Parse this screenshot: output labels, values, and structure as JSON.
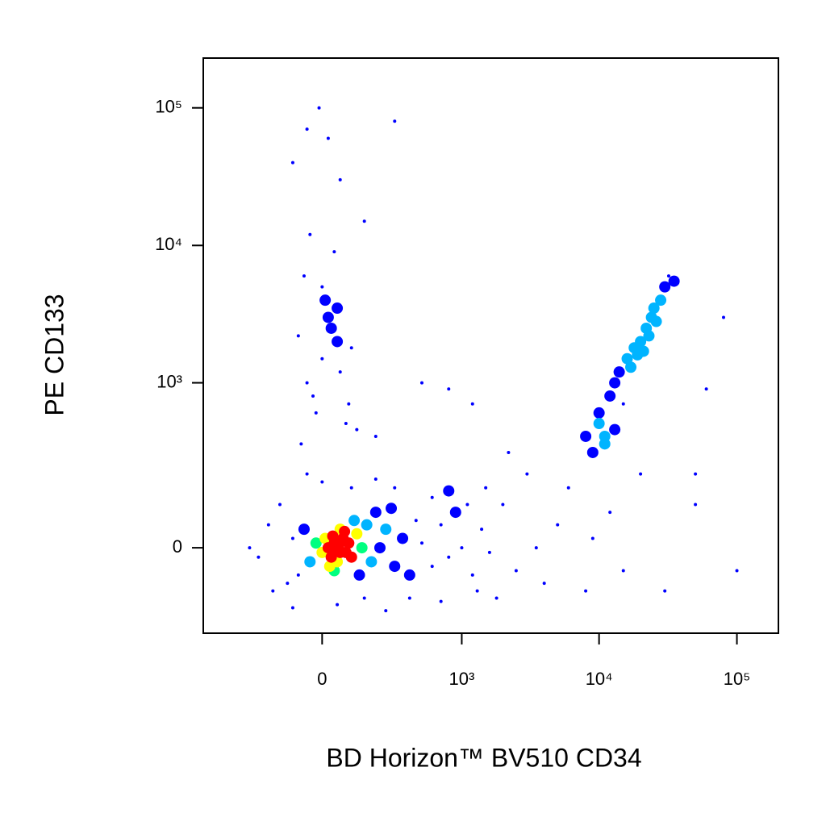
{
  "chart_data": {
    "type": "scatter",
    "x_label": "BD Horizon™ BV510 CD34",
    "y_label": "PE CD133",
    "xlim": [
      -700,
      200000
    ],
    "ylim": [
      -250,
      230000
    ],
    "xticks": [
      0,
      {
        "value": 1000,
        "label": "10³"
      },
      {
        "value": 10000,
        "label": "10⁴"
      },
      {
        "value": 100000,
        "label": "10⁵"
      }
    ],
    "yticks": [
      0,
      {
        "value": 1000,
        "label": "10³"
      },
      {
        "value": 10000,
        "label": "10⁴"
      },
      {
        "value": 100000,
        "label": "10⁵"
      }
    ],
    "colormap": [
      "#0000ff",
      "#00b4ff",
      "#00ff80",
      "#ffff00",
      "#ff0000"
    ],
    "x": [
      50,
      40,
      60,
      30,
      70,
      55,
      45,
      65,
      20,
      80,
      35,
      50,
      75,
      25,
      90,
      10,
      60,
      40,
      100,
      0,
      120,
      -20,
      110,
      -40,
      140,
      130,
      -60,
      160,
      -80,
      180,
      200,
      -100,
      220,
      -120,
      250,
      300,
      280,
      350,
      400,
      450,
      500,
      600,
      700,
      800,
      900,
      1000,
      1200,
      1400,
      1600,
      -150,
      -180,
      -200,
      -250,
      -300,
      100,
      200,
      50,
      150,
      300,
      0,
      -100,
      400,
      600,
      800,
      1100,
      1300,
      -50,
      250,
      700,
      1500,
      2000,
      2500,
      3000,
      3500,
      4000,
      5000,
      6000,
      8000,
      9000,
      12000,
      15000,
      20000,
      30000,
      50000,
      100000,
      2200,
      1800,
      10000,
      12000,
      9000,
      11000,
      14000,
      15000,
      13000,
      16000,
      18000,
      20000,
      17000,
      22000,
      24000,
      21000,
      25000,
      28000,
      26000,
      30000,
      32000,
      35000,
      23000,
      19000,
      10000,
      8000,
      11000,
      13000,
      -50,
      0,
      50,
      20,
      -30,
      60,
      10,
      -60,
      40,
      80,
      -20,
      30,
      90,
      100,
      -80,
      0,
      50,
      -40,
      -100,
      -50,
      -10,
      20,
      150,
      300,
      200,
      -70,
      120,
      60,
      500,
      800,
      1200,
      80000,
      60000,
      50000
    ],
    "values": [
      0,
      10,
      -10,
      -20,
      20,
      5,
      -5,
      15,
      0,
      -10,
      25,
      -30,
      35,
      -40,
      10,
      20,
      40,
      -50,
      -20,
      -10,
      30,
      10,
      60,
      -30,
      0,
      -60,
      40,
      50,
      -60,
      -30,
      80,
      20,
      0,
      -80,
      40,
      -40,
      90,
      20,
      -60,
      60,
      10,
      -40,
      50,
      -20,
      80,
      0,
      -60,
      40,
      -10,
      100,
      -100,
      50,
      -20,
      0,
      150,
      180,
      -140,
      -120,
      150,
      170,
      -150,
      -120,
      120,
      140,
      100,
      -100,
      200,
      -160,
      -130,
      150,
      100,
      -50,
      200,
      0,
      -80,
      50,
      150,
      -100,
      20,
      80,
      -50,
      200,
      -100,
      100,
      -50,
      300,
      -120,
      500,
      800,
      300,
      400,
      1200,
      700,
      1000,
      1500,
      1800,
      2000,
      1300,
      2500,
      3000,
      1700,
      3500,
      4000,
      2800,
      5000,
      6000,
      5500,
      2200,
      1600,
      600,
      400,
      350,
      450,
      1000,
      1500,
      2000,
      3000,
      800,
      1200,
      4000,
      6000,
      9000,
      500,
      600,
      2500,
      700,
      1800,
      2200,
      5000,
      3500,
      12000,
      40000,
      70000,
      100000,
      60000,
      15000,
      80000,
      400,
      350,
      450,
      30000,
      1000,
      900,
      700,
      3000,
      900,
      200
    ]
  }
}
